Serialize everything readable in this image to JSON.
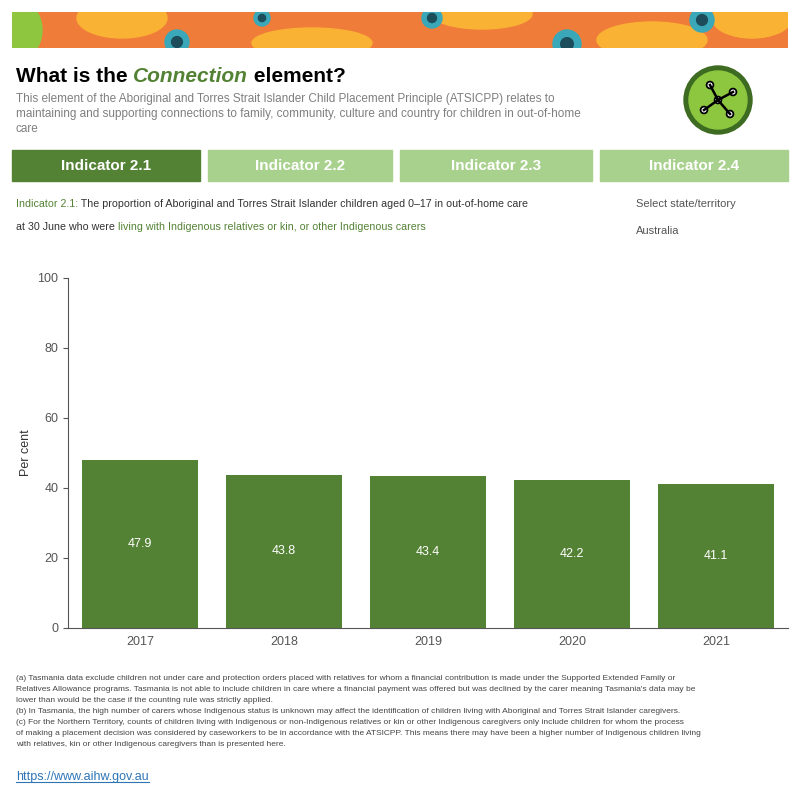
{
  "header": {
    "title_parts": [
      "What is the ",
      "Connection",
      " element?"
    ],
    "description_lines": [
      "This element of the Aboriginal and Torres Strait Islander Child Placement Principle (ATSICPP) relates to",
      "maintaining and supporting connections to family, community, culture and country for children in out-of-home",
      "care"
    ]
  },
  "tabs": [
    "Indicator 2.1",
    "Indicator 2.2",
    "Indicator 2.3",
    "Indicator 2.4"
  ],
  "selector": {
    "label": "Select state/territory",
    "value": "Australia"
  },
  "chart_data": {
    "type": "bar",
    "subtitle_lines": [
      [
        "Indicator 2.1:",
        " The proportion of Aboriginal and Torres Strait Islander children aged 0–17 in out-of-home care"
      ],
      [
        "at 30 June who were ",
        "living with Indigenous relatives or kin, or other Indigenous carers"
      ]
    ],
    "y_label": "Per cent",
    "categories": [
      "2017",
      "2018",
      "2019",
      "2020",
      "2021"
    ],
    "values": [
      47.9,
      43.8,
      43.4,
      42.2,
      41.1
    ],
    "color": "#548235",
    "ylim": [
      0,
      100
    ],
    "yticks": [
      0,
      20,
      40,
      60,
      80,
      100
    ],
    "grid": false,
    "data_labels": true
  },
  "notes": [
    "(a) Tasmania data exclude children not under care and protection orders placed with relatives for whom a financial contribution is made under the Supported Extended Family or",
    "Relatives Allowance programs. Tasmania is not able to include children in care where a financial payment was offered but was declined by the carer meaning Tasmania's data may be",
    "lower than would be the case if the counting rule was strictly applied.",
    "(b) In Tasmania, the high number of carers whose Indigenous status is unknown may affect the identification of children living with Aboriginal and Torres Strait Islander caregivers.",
    "(c) For the Northern Territory, counts of children living with Indigenous or non-Indigenous relatives or kin or other Indigenous caregivers only include children for whom the process",
    "of making a placement decision was considered by caseworkers to be in accordance with the ATSICPP. This means there may have been a higher number of Indigenous children living",
    "with relatives, kin or other Indigenous caregivers than is presented here."
  ],
  "source_url": "https://www.aihw.gov.au"
}
